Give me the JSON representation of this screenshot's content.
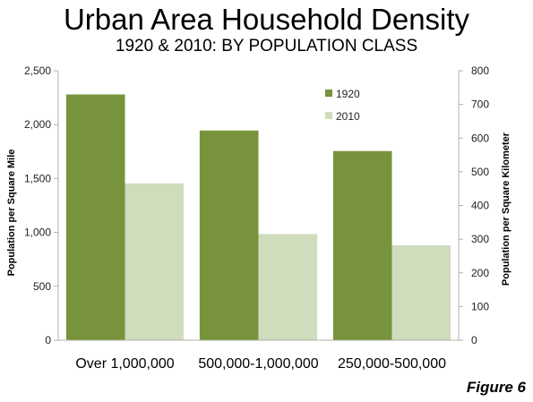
{
  "figure_label": "Figure 6",
  "chart_data": {
    "type": "bar",
    "title": "Urban Area Household Density",
    "subtitle": "1920 & 2010: BY POPULATION CLASS",
    "categories": [
      "Over 1,000,000",
      "500,000-1,000,000",
      "250,000-500,000"
    ],
    "series": [
      {
        "name": "1920",
        "values": [
          2280,
          1945,
          1755
        ],
        "color": "#77933c"
      },
      {
        "name": "2010",
        "values": [
          1455,
          985,
          880
        ],
        "color": "#d0ddbd"
      }
    ],
    "ylabel": "Population per Square Mile",
    "ylim": [
      0,
      2500
    ],
    "yticks": [
      0,
      500,
      1000,
      1500,
      2000,
      2500
    ],
    "ytick_labels": [
      "0",
      "500",
      "1,000",
      "1,500",
      "2,000",
      "2,500"
    ],
    "y2label": "Population per Square Kilometer",
    "y2lim": [
      0,
      800
    ],
    "y2ticks": [
      0,
      100,
      200,
      300,
      400,
      500,
      600,
      700,
      800
    ],
    "y2tick_labels": [
      "0",
      "100",
      "200",
      "300",
      "400",
      "500",
      "600",
      "700",
      "800"
    ],
    "legend_position": "top-right",
    "grid": false
  }
}
